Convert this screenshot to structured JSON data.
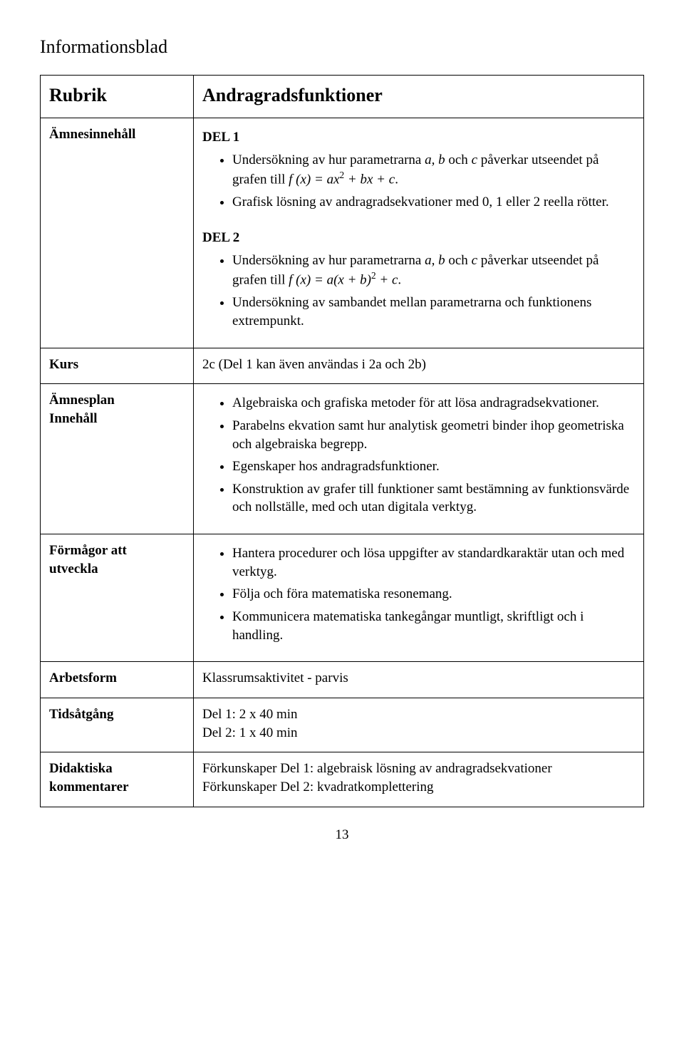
{
  "page": {
    "title": "Informationsblad",
    "pagenum": "13"
  },
  "labels": {
    "rubrik": "Rubrik",
    "amnesinnehall": "Ämnesinnehåll",
    "kurs": "Kurs",
    "amnesplan": "Ämnesplan",
    "innehall": "Innehåll",
    "formagor1": "Förmågor att",
    "formagor2": "utveckla",
    "arbetsform": "Arbetsform",
    "tidsatgang": "Tidsåtgång",
    "didaktiska1": "Didaktiska",
    "didaktiska2": "kommentarer"
  },
  "values": {
    "rubrik": "Andragradsfunktioner",
    "del1_head": "DEL 1",
    "del2_head": "DEL 2",
    "del1_b1a": "Undersökning av hur parametrarna ",
    "del1_b1_params": "a, b ",
    "del1_b1_och": "och ",
    "del1_b1_c": "c ",
    "del1_b1b": "påverkar utseendet på grafen till ",
    "del1_b1_eq": "f (x) = ax",
    "del1_b1_eq2": " + bx + c",
    "del1_b1_dot": ".",
    "del1_b2": "Grafisk lösning av andragradsekvationer med 0, 1 eller 2 reella rötter.",
    "del2_b1a": "Undersökning av hur parametrarna ",
    "del2_b1_params": "a, b ",
    "del2_b1_och": "och ",
    "del2_b1_c": "c ",
    "del2_b1b": "påverkar utseendet på grafen till ",
    "del2_b1_eq": "f (x) = a(x + b)",
    "del2_b1_eq2": " + c",
    "del2_b1_dot": ".",
    "del2_b2": "Undersökning av sambandet mellan parametrarna och funktionens extrempunkt.",
    "kurs": "2c (Del 1 kan även användas i 2a och 2b)",
    "plan_b1": "Algebraiska och grafiska metoder för att lösa andragradsekvationer.",
    "plan_b2": "Parabelns ekvation samt hur analytisk geometri binder ihop geometriska och algebraiska begrepp.",
    "plan_b3": "Egenskaper hos andragradsfunktioner.",
    "plan_b4": "Konstruktion av grafer till funktioner samt bestämning av funktionsvärde och nollställe, med och utan digitala verktyg.",
    "form_b1": "Hantera procedurer och lösa uppgifter av standardkaraktär utan och med verktyg.",
    "form_b2": "Följa och föra matematiska resonemang.",
    "form_b3": "Kommunicera matematiska tankegångar muntligt, skriftligt och i handling.",
    "arbetsform": "Klassrumsaktivitet - parvis",
    "tid1": "Del 1: 2 x 40 min",
    "tid2": "Del 2: 1 x 40 min",
    "did1": "Förkunskaper Del 1: algebraisk lösning av andragradsekvationer",
    "did2": "Förkunskaper Del 2: kvadratkomplettering",
    "sup2": "2"
  }
}
